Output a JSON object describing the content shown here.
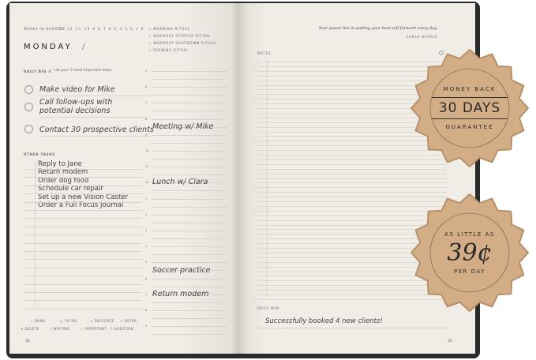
{
  "left_page": {
    "weeks_label": "Weeks in quarter",
    "weeks": [
      "13",
      "12",
      "11",
      "10",
      "9",
      "8",
      "7",
      "6",
      "5",
      "4",
      "3",
      "2",
      "1",
      "0"
    ],
    "day": "MONDAY",
    "date_sep": "/",
    "rituals": [
      "Morning ritual",
      "Workday startup ritual",
      "Workday shutdown ritual",
      "Evening ritual"
    ],
    "daily_big3_label": "DAILY BIG 3",
    "daily_big3_hint": "List your 3 most important tasks.",
    "big3": [
      "Make video for Mike",
      "Call follow-ups with",
      "potential decisions",
      "Contact 30 prospective clients"
    ],
    "other_tasks_label": "OTHER TASKS",
    "other_tasks": [
      "Reply to Jane",
      "Return modem",
      "Order dog food",
      "Schedule car repair",
      "Set up a new Vision Caster",
      "Order a Full Focus Journal"
    ],
    "hours": [
      "5",
      "6",
      "7",
      "8",
      "9",
      "10",
      "11",
      "12",
      "1",
      "2",
      "3",
      "4",
      "5",
      "6",
      "7",
      "8",
      "9"
    ],
    "schedule": {
      "meeting": "Meeting w/ Mike",
      "lunch": "Lunch w/ Clara",
      "soccer": "Soccer practice",
      "modem": "Return modem"
    },
    "legend": [
      "✓ Done",
      "□ To do",
      "↘ Delegate",
      "→ Defer",
      "✕ Delete",
      "/ Waiting",
      "☆ Important",
      "? Question"
    ],
    "page_number": "34"
  },
  "right_page": {
    "quote": "Your power lies in putting your best self forward every day.",
    "quote_author": "CARLA HARRIS",
    "notes_label": "NOTES",
    "daily_win_label": "DAILY WIN",
    "daily_win": "Successfully booked 4 new clients!",
    "page_number": "35"
  },
  "badges": {
    "guarantee": {
      "top": "MONEY BACK",
      "main": "30 DAYS",
      "bottom": "GUARANTEE"
    },
    "price": {
      "top": "AS LITTLE AS",
      "main": "39¢",
      "bottom": "PER DAY"
    },
    "color": "#d2ad86"
  }
}
